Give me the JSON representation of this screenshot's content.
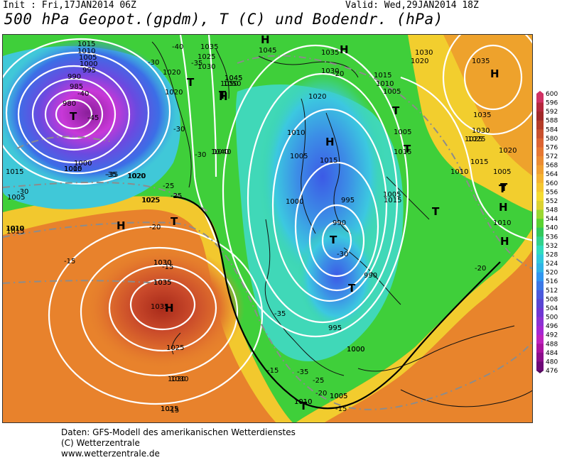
{
  "header": {
    "init_label": "Init : Fri,17JAN2014 06Z",
    "valid_label": "Valid: Wed,29JAN2014 18Z",
    "title": "500 hPa Geopot.(gpdm), T (C) und Bodendr. (hPa)"
  },
  "colors": {
    "orange_high": "#e8782a",
    "red_core": "#b3321c",
    "yellow": "#f5d32a",
    "green": "#3fcf3a",
    "cyan": "#40dcc0",
    "blue_low": "#3c6ee6",
    "magenta_low": "#c838d8"
  },
  "legend": {
    "values": [
      "600",
      "596",
      "592",
      "588",
      "584",
      "580",
      "576",
      "572",
      "568",
      "564",
      "560",
      "556",
      "552",
      "548",
      "544",
      "540",
      "536",
      "532",
      "528",
      "524",
      "520",
      "516",
      "512",
      "508",
      "504",
      "500",
      "496",
      "492",
      "488",
      "484",
      "480",
      "476"
    ],
    "colors": [
      "#d03264",
      "#b4283c",
      "#a02828",
      "#b43c28",
      "#c8502d",
      "#dc6432",
      "#e67832",
      "#eb8c32",
      "#f0a032",
      "#f5b432",
      "#f5c832",
      "#f5dc32",
      "#dcd232",
      "#9bd732",
      "#5ad232",
      "#32c85a",
      "#32d28c",
      "#32dcbe",
      "#32c8dc",
      "#32b4e6",
      "#3296f0",
      "#3c78e6",
      "#4b5adc",
      "#5a46d2",
      "#7037d2",
      "#8c32d2",
      "#a528d2",
      "#be23be",
      "#aa14a0",
      "#8c0f8c",
      "#6e0a78",
      "#500a5a"
    ]
  },
  "map": {
    "pressure_labels": [
      "1015",
      "1010",
      "1005",
      "1000",
      "995",
      "990",
      "985",
      "980",
      "1020",
      "1025",
      "1030",
      "1035",
      "1040",
      "1045",
      "1050",
      "1045",
      "1035",
      "1030",
      "1020",
      "1015",
      "1010",
      "1005",
      "1010",
      "1005",
      "1015",
      "1000",
      "995",
      "990",
      "990",
      "1005",
      "1010",
      "1015",
      "1020",
      "1025",
      "1030",
      "1035",
      "1040",
      "1010",
      "1005",
      "1000",
      "1025",
      "1020",
      "1015",
      "1010",
      "1030",
      "1035",
      "1025",
      "1020",
      "1015",
      "1010",
      "1005",
      "995",
      "1000",
      "1005",
      "1010",
      "1015",
      "1005",
      "1025",
      "1030",
      "1035",
      "1030",
      "1025",
      "1020",
      "1015",
      "1035",
      "1010",
      "1005",
      "1045",
      "1050",
      "1000",
      "1030",
      "1035",
      "1030",
      "1025",
      "1025",
      "1020",
      "1005",
      "1010"
    ],
    "temp_labels": [
      "-45",
      "-40",
      "-30",
      "-35",
      "-30",
      "-25",
      "-20",
      "-15",
      "-15",
      "-35",
      "-30",
      "-35",
      "-25",
      "-20",
      "-15",
      "-15",
      "-20",
      "-30",
      "-35",
      "-30",
      "-25",
      "-20",
      "-15",
      "-40",
      "-35"
    ],
    "high_marks": [
      "H",
      "H",
      "H",
      "H",
      "H",
      "H",
      "H",
      "H",
      "H"
    ],
    "low_marks": [
      "T",
      "T",
      "T",
      "T",
      "T",
      "T",
      "T",
      "T",
      "T",
      "T",
      "T",
      "T",
      "T",
      "T"
    ]
  },
  "footer": {
    "line1": "Daten: GFS-Modell des amerikanischen Wetterdienstes",
    "line2": "(C) Wetterzentrale",
    "line3": "www.wetterzentrale.de"
  }
}
